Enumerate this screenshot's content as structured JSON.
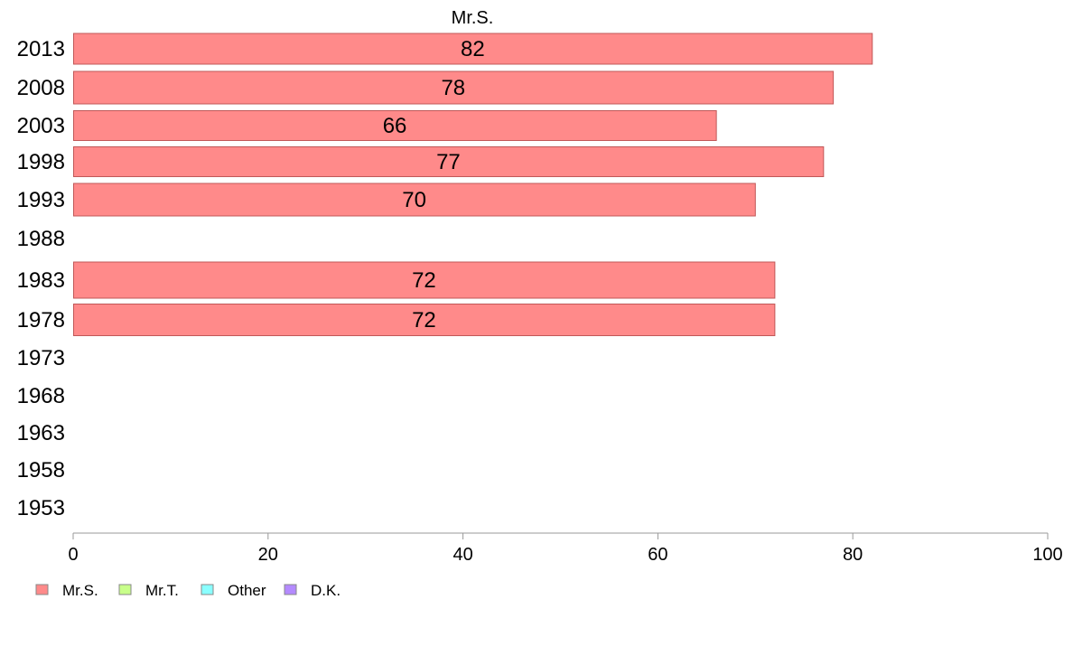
{
  "chart_data": {
    "type": "bar",
    "orientation": "horizontal",
    "title": "Mr.S.",
    "categories": [
      "2013",
      "2008",
      "2003",
      "1998",
      "1993",
      "1988",
      "1983",
      "1978",
      "1973",
      "1968",
      "1963",
      "1958",
      "1953"
    ],
    "series": [
      {
        "name": "Mr.S.",
        "values": [
          82,
          78,
          66,
          77,
          70,
          null,
          72,
          72,
          null,
          null,
          null,
          null,
          null
        ]
      }
    ],
    "data_labels": [
      "82",
      "78",
      "66",
      "77",
      "70",
      "",
      "72",
      "72",
      "",
      "",
      "",
      "",
      ""
    ],
    "xlim": [
      0,
      100
    ],
    "xticks": [
      "0",
      "20",
      "40",
      "60",
      "80",
      "100"
    ],
    "xlabel": "",
    "ylabel": "",
    "grid": false,
    "legend_position": "bottom-left",
    "legend": [
      {
        "label": "Mr.S.",
        "color": "#ff8a8a"
      },
      {
        "label": "Mr.T.",
        "color": "#c8ff8a"
      },
      {
        "label": "Other",
        "color": "#8affff"
      },
      {
        "label": "D.K.",
        "color": "#b48aff"
      }
    ],
    "bar_color": "#ff8a8a",
    "bar_edge_color": "#c05858"
  }
}
